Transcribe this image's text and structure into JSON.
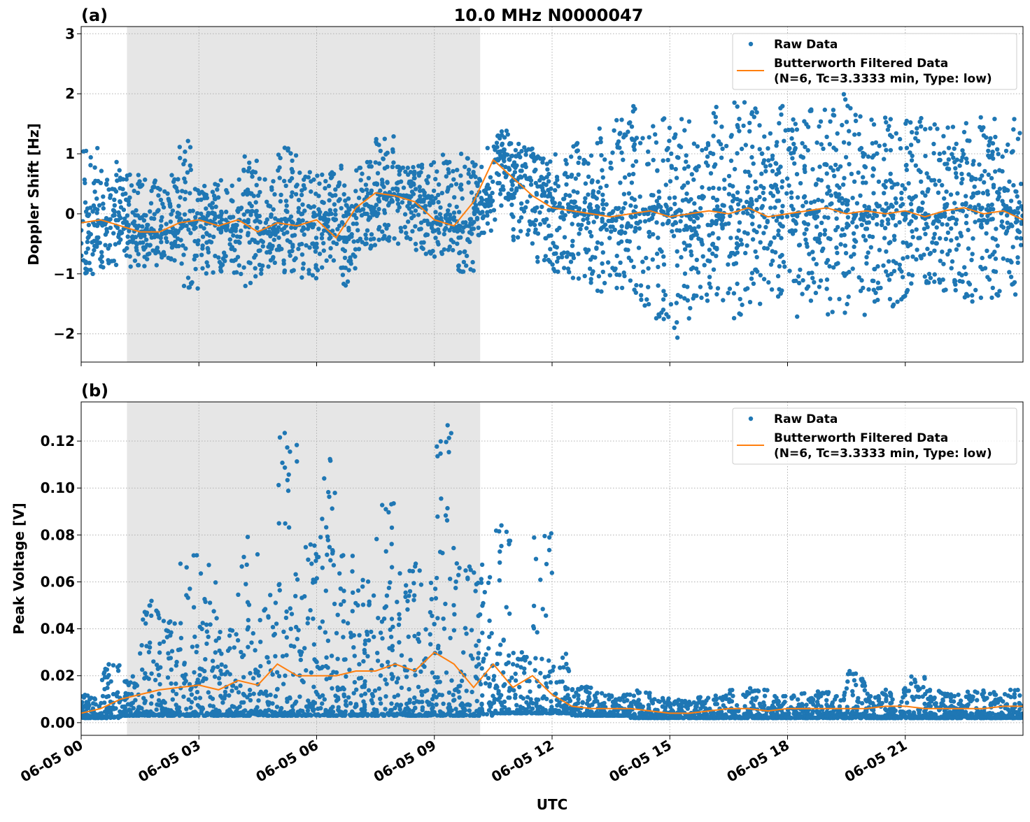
{
  "title": "10.0 MHz N0000047",
  "xlabel": "UTC",
  "colors": {
    "raw": "#1f77b4",
    "filtered": "#ff7f0e",
    "shade": "#e6e6e6",
    "grid": "#b0b0b0"
  },
  "legend": {
    "raw": "Raw Data",
    "filtered_line1": "Butterworth Filtered Data",
    "filtered_line2": "(N=6, Tc=3.3333 min, Type: low)",
    "placement": "top-right"
  },
  "chart_data": [
    {
      "type": "scatter+line",
      "panel_label": "(a)",
      "ylabel": "Doppler Shift [Hz]",
      "xlim_hours": [
        0,
        24
      ],
      "ylim": [
        -2.47,
        3.12
      ],
      "xticks": [
        "06-05 00",
        "06-05 03",
        "06-05 06",
        "06-05 09",
        "06-05 12",
        "06-05 15",
        "06-05 18",
        "06-05 21"
      ],
      "yticks": [
        -2,
        -1,
        0,
        1,
        2,
        3
      ],
      "ytick_labels": [
        "−2",
        "−1",
        "0",
        "1",
        "2",
        "3"
      ],
      "grid": true,
      "shaded_span_utc": [
        "01:10",
        "10:10"
      ],
      "x_hours": [
        0,
        0.5,
        1,
        1.5,
        2,
        2.5,
        3,
        3.5,
        4,
        4.5,
        5,
        5.5,
        6,
        6.5,
        7,
        7.5,
        8,
        8.5,
        9,
        9.5,
        10,
        10.5,
        11,
        11.5,
        12,
        12.5,
        13,
        13.5,
        14,
        14.5,
        15,
        15.5,
        16,
        16.5,
        17,
        17.5,
        18,
        18.5,
        19,
        19.5,
        20,
        20.5,
        21,
        21.5,
        22,
        22.5,
        23,
        23.5,
        24
      ],
      "filtered": [
        -0.15,
        -0.1,
        -0.2,
        -0.3,
        -0.3,
        -0.15,
        -0.1,
        -0.2,
        -0.1,
        -0.3,
        -0.15,
        -0.2,
        -0.1,
        -0.4,
        0.1,
        0.35,
        0.3,
        0.2,
        -0.1,
        -0.2,
        0.2,
        0.9,
        0.6,
        0.3,
        0.1,
        0.05,
        0.0,
        -0.05,
        0.0,
        0.05,
        -0.05,
        0.0,
        0.05,
        0.0,
        0.1,
        -0.05,
        0.0,
        0.05,
        0.1,
        0.0,
        0.05,
        0.0,
        0.05,
        -0.05,
        0.05,
        0.1,
        0.0,
        0.05,
        -0.1
      ],
      "raw_low": [
        -1.1,
        -0.9,
        -0.9,
        -0.9,
        -0.8,
        -1.3,
        -1.0,
        -1.0,
        -1.3,
        -1.0,
        -1.0,
        -1.1,
        -1.0,
        -1.2,
        -0.6,
        -0.5,
        -0.5,
        -0.7,
        -0.8,
        -1.0,
        -0.4,
        -0.1,
        -0.5,
        -0.8,
        -1.1,
        -1.2,
        -1.3,
        -1.4,
        -1.6,
        -1.8,
        -2.1,
        -1.6,
        -1.7,
        -1.8,
        -1.5,
        -1.4,
        -1.8,
        -1.5,
        -1.7,
        -1.7,
        -1.5,
        -1.6,
        -1.4,
        -1.4,
        -1.3,
        -1.5,
        -1.4,
        -1.4,
        -1.3
      ],
      "raw_high": [
        1.1,
        0.9,
        0.7,
        0.6,
        0.7,
        1.3,
        0.5,
        0.6,
        1.0,
        0.6,
        1.1,
        0.7,
        0.7,
        0.8,
        0.9,
        1.3,
        0.8,
        0.9,
        1.0,
        1.0,
        1.1,
        1.4,
        1.2,
        1.0,
        1.0,
        1.2,
        1.5,
        1.6,
        1.9,
        1.6,
        1.6,
        1.5,
        1.9,
        1.9,
        1.9,
        1.8,
        1.6,
        1.8,
        2.0,
        1.8,
        1.7,
        1.6,
        1.6,
        1.5,
        1.6,
        1.8,
        1.6,
        1.6,
        1.6
      ]
    },
    {
      "type": "scatter+line",
      "panel_label": "(b)",
      "ylabel": "Peak Voltage [V]",
      "xlim_hours": [
        0,
        24
      ],
      "ylim": [
        -0.0054,
        0.1367
      ],
      "xticks": [
        "06-05 00",
        "06-05 03",
        "06-05 06",
        "06-05 09",
        "06-05 12",
        "06-05 15",
        "06-05 18",
        "06-05 21"
      ],
      "yticks": [
        0,
        0.02,
        0.04,
        0.06,
        0.08,
        0.1,
        0.12
      ],
      "ytick_labels": [
        "0.00",
        "0.02",
        "0.04",
        "0.06",
        "0.08",
        "0.10",
        "0.12"
      ],
      "grid": true,
      "shaded_span_utc": [
        "01:10",
        "10:10"
      ],
      "x_hours": [
        0,
        0.5,
        1,
        1.5,
        2,
        2.5,
        3,
        3.5,
        4,
        4.5,
        5,
        5.5,
        6,
        6.5,
        7,
        7.5,
        8,
        8.5,
        9,
        9.5,
        10,
        10.5,
        11,
        11.5,
        12,
        12.5,
        13,
        13.5,
        14,
        14.5,
        15,
        15.5,
        16,
        16.5,
        17,
        17.5,
        18,
        18.5,
        19,
        19.5,
        20,
        20.5,
        21,
        21.5,
        22,
        22.5,
        23,
        23.5,
        24
      ],
      "filtered": [
        0.004,
        0.006,
        0.01,
        0.012,
        0.014,
        0.015,
        0.016,
        0.014,
        0.018,
        0.016,
        0.025,
        0.02,
        0.02,
        0.02,
        0.022,
        0.022,
        0.025,
        0.022,
        0.03,
        0.025,
        0.015,
        0.025,
        0.015,
        0.02,
        0.012,
        0.007,
        0.006,
        0.006,
        0.006,
        0.005,
        0.004,
        0.004,
        0.005,
        0.006,
        0.006,
        0.005,
        0.006,
        0.006,
        0.006,
        0.006,
        0.006,
        0.007,
        0.007,
        0.006,
        0.006,
        0.006,
        0.006,
        0.007,
        0.007
      ],
      "raw_low": [
        0.002,
        0.002,
        0.003,
        0.003,
        0.003,
        0.003,
        0.003,
        0.003,
        0.003,
        0.003,
        0.003,
        0.003,
        0.003,
        0.003,
        0.003,
        0.003,
        0.003,
        0.003,
        0.003,
        0.003,
        0.003,
        0.004,
        0.004,
        0.004,
        0.004,
        0.003,
        0.003,
        0.003,
        0.002,
        0.002,
        0.002,
        0.002,
        0.002,
        0.002,
        0.002,
        0.002,
        0.002,
        0.002,
        0.002,
        0.002,
        0.002,
        0.002,
        0.002,
        0.002,
        0.002,
        0.002,
        0.002,
        0.002,
        0.002
      ],
      "raw_high": [
        0.012,
        0.025,
        0.02,
        0.052,
        0.046,
        0.081,
        0.072,
        0.04,
        0.083,
        0.056,
        0.13,
        0.078,
        0.113,
        0.073,
        0.064,
        0.094,
        0.07,
        0.068,
        0.128,
        0.068,
        0.068,
        0.085,
        0.03,
        0.082,
        0.03,
        0.016,
        0.013,
        0.012,
        0.014,
        0.011,
        0.01,
        0.011,
        0.012,
        0.014,
        0.015,
        0.012,
        0.013,
        0.014,
        0.013,
        0.022,
        0.013,
        0.015,
        0.02,
        0.014,
        0.013,
        0.014,
        0.013,
        0.014,
        0.015
      ]
    }
  ]
}
